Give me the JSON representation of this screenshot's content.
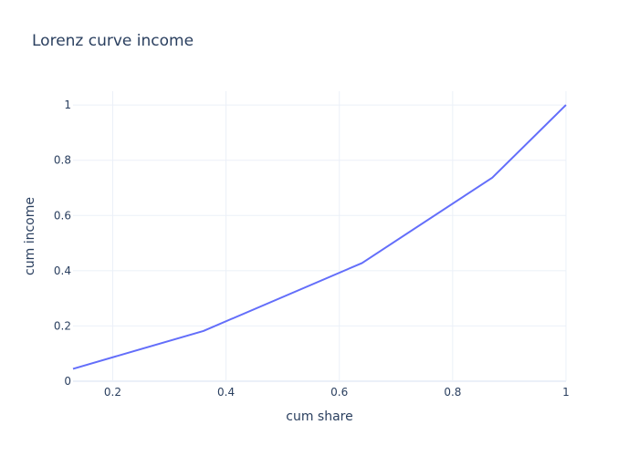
{
  "chart_data": {
    "type": "line",
    "title": "Lorenz curve income",
    "xlabel": "cum share",
    "ylabel": "cum income",
    "xlim": [
      0.13,
      1.0
    ],
    "ylim": [
      0,
      1.05
    ],
    "xticks": [
      0.2,
      0.4,
      0.6,
      0.8,
      1
    ],
    "xtick_labels": [
      "0.2",
      "0.4",
      "0.6",
      "0.8",
      "1"
    ],
    "yticks": [
      0,
      0.2,
      0.4,
      0.6,
      0.8,
      1
    ],
    "ytick_labels": [
      "0",
      "0.2",
      "0.4",
      "0.6",
      "0.8",
      "1"
    ],
    "grid": true,
    "line_color": "#636efa",
    "x": [
      0.13,
      0.36,
      0.64,
      0.87,
      1.0
    ],
    "y": [
      0.045,
      0.182,
      0.428,
      0.737,
      1.0
    ]
  }
}
